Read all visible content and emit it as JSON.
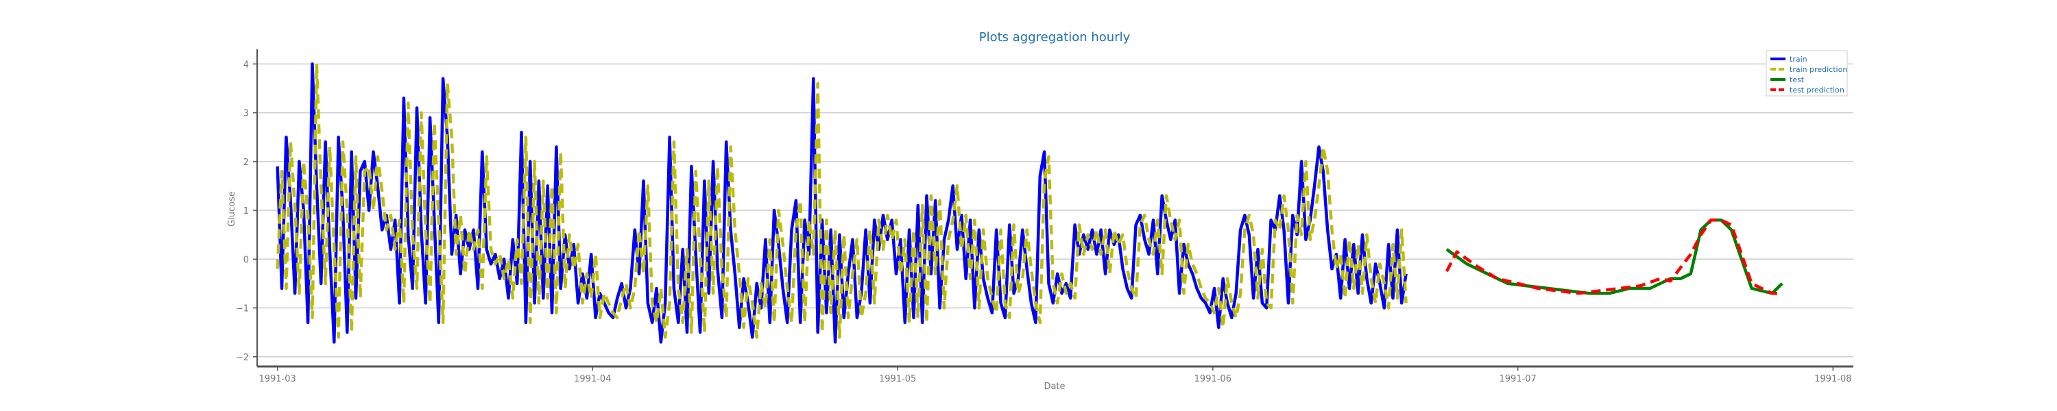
{
  "chart_data": {
    "type": "line",
    "title": "Plots aggregation hourly",
    "xlabel": "Date",
    "ylabel": "Glucose",
    "ylim": [
      -2.2,
      4.3
    ],
    "xlim": [
      "1991-02-27",
      "1991-08-03"
    ],
    "grid": "horizontal",
    "legend_position": "top-right",
    "x_ticks": [
      "1991-03-01",
      "1991-04-01",
      "1991-05-01",
      "1991-06-01",
      "1991-07-01",
      "1991-08-01"
    ],
    "x_tick_labels": [
      "1991-03",
      "1991-04",
      "1991-05",
      "1991-06",
      "1991-07",
      "1991-08"
    ],
    "y_ticks": [
      -2,
      -1,
      0,
      1,
      2,
      3,
      4
    ],
    "series": [
      {
        "name": "train",
        "color": "#0000ff",
        "style": "solid",
        "x_start": "1991-03-01",
        "x_end": "1991-06-20",
        "values": [
          1.9,
          -0.6,
          2.5,
          1.2,
          -0.7,
          2.0,
          1.0,
          -1.3,
          4.0,
          1.5,
          -0.5,
          2.4,
          0.2,
          -1.7,
          2.5,
          1.0,
          -1.5,
          2.2,
          -0.8,
          1.8,
          2.0,
          1.0,
          2.2,
          1.5,
          0.6,
          0.9,
          0.2,
          0.8,
          -0.9,
          3.3,
          0.5,
          -0.6,
          3.1,
          0.6,
          -0.9,
          2.9,
          0.8,
          -1.3,
          3.7,
          2.5,
          0.1,
          0.9,
          -0.3,
          0.6,
          0.2,
          0.6,
          -0.6,
          2.2,
          0.2,
          -0.1,
          0.1,
          -0.4,
          0.0,
          -0.8,
          0.4,
          -0.5,
          2.6,
          -1.3,
          2.0,
          -0.9,
          1.6,
          -0.8,
          1.5,
          -1.1,
          2.3,
          -0.6,
          0.5,
          -0.2,
          0.3,
          -0.9,
          -0.3,
          -0.8,
          0.1,
          -1.2,
          -0.7,
          -0.9,
          -1.1,
          -1.2,
          -0.8,
          -0.5,
          -1.0,
          -0.6,
          0.6,
          -0.3,
          1.6,
          -0.9,
          -1.3,
          -0.6,
          -1.7,
          -0.9,
          2.5,
          -0.6,
          -1.3,
          0.2,
          -1.5,
          1.9,
          0.1,
          -1.5,
          1.6,
          -0.7,
          2.0,
          -0.2,
          -1.2,
          2.4,
          0.6,
          -0.3,
          -1.4,
          -0.4,
          -0.9,
          -1.6,
          -0.5,
          -1.0,
          0.4,
          -1.3,
          1.0,
          0.3,
          -0.6,
          -1.3,
          0.6,
          1.2,
          -1.3,
          0.8,
          0.1,
          3.7,
          -1.5,
          0.8,
          -1.1,
          0.6,
          -1.7,
          0.5,
          -1.2,
          -0.3,
          0.4,
          -1.2,
          -0.7,
          0.6,
          -0.9,
          0.8,
          0.2,
          0.9,
          0.4,
          0.8,
          -0.3,
          0.4,
          -1.3,
          0.6,
          -1.2,
          1.1,
          -1.3,
          1.3,
          -0.3,
          1.2,
          -1.0,
          0.4,
          0.8,
          1.5,
          0.2,
          0.9,
          -0.4,
          0.8,
          -1.0,
          0.6,
          -0.4,
          -0.8,
          -1.1,
          0.6,
          -0.9,
          -1.2,
          0.7,
          -0.7,
          -0.4,
          0.6,
          -0.2,
          -0.9,
          -1.3,
          1.7,
          2.2,
          -0.5,
          -0.9,
          -0.3,
          -0.7,
          -0.5,
          -0.8,
          0.7,
          0.1,
          0.5,
          0.2,
          0.6,
          0.1,
          0.6,
          -0.3,
          0.6,
          0.3,
          0.5,
          -0.2,
          -0.6,
          -0.8,
          0.7,
          0.9,
          0.4,
          0.1,
          0.8,
          -0.3,
          1.3,
          0.8,
          0.4,
          0.8,
          -0.7,
          0.3,
          -0.1,
          -0.3,
          -0.6,
          -0.8,
          -0.9,
          -1.1,
          -0.6,
          -1.4,
          -0.4,
          -0.9,
          -1.2,
          -0.7,
          0.6,
          0.9,
          0.5,
          -0.8,
          0.2,
          -0.9,
          -1.0,
          0.8,
          0.6,
          1.3,
          0.6,
          -0.9,
          0.9,
          0.5,
          2.0,
          0.4,
          0.8,
          1.5,
          2.3,
          1.8,
          0.6,
          -0.2,
          0.1,
          -0.8,
          0.4,
          -0.6,
          0.3,
          -0.7,
          0.5,
          -0.4,
          -0.9,
          -0.1,
          -0.5,
          -1.0,
          0.3,
          -0.8,
          0.6,
          -0.9,
          -0.3
        ]
      },
      {
        "name": "train prediction",
        "color": "#bdbd00",
        "style": "dashed",
        "x_start": "1991-03-01",
        "x_end": "1991-06-20",
        "values": [
          -0.2,
          1.8,
          -0.6,
          2.4,
          1.1,
          -0.7,
          2.0,
          0.9,
          -1.2,
          4.0,
          1.5,
          -0.5,
          2.3,
          0.2,
          -1.6,
          2.4,
          1.0,
          -1.5,
          2.1,
          -0.8,
          1.8,
          1.9,
          1.0,
          2.1,
          1.4,
          0.6,
          0.9,
          0.2,
          0.8,
          -0.9,
          3.2,
          0.5,
          -0.6,
          3.0,
          0.6,
          -0.9,
          2.8,
          0.8,
          -1.3,
          3.6,
          2.5,
          0.1,
          0.9,
          -0.3,
          0.6,
          0.2,
          0.6,
          -0.6,
          2.1,
          0.2,
          -0.1,
          0.1,
          -0.4,
          0.0,
          -0.8,
          0.4,
          -0.5,
          2.5,
          -1.3,
          2.0,
          -0.9,
          1.6,
          -0.8,
          1.5,
          -1.1,
          2.2,
          -0.6,
          0.5,
          -0.2,
          0.3,
          -0.9,
          -0.3,
          -0.8,
          0.1,
          -1.2,
          -0.7,
          -0.9,
          -1.1,
          -1.2,
          -0.8,
          -0.5,
          -1.0,
          -0.6,
          0.6,
          -0.3,
          1.5,
          -0.9,
          -1.3,
          -0.6,
          -1.6,
          -0.9,
          2.4,
          -0.6,
          -1.3,
          0.2,
          -1.5,
          1.8,
          0.1,
          -1.5,
          1.6,
          -0.7,
          1.9,
          -0.2,
          -1.2,
          2.3,
          0.6,
          -0.3,
          -1.4,
          -0.4,
          -0.9,
          -1.6,
          -0.5,
          -1.0,
          0.4,
          -1.3,
          1.0,
          0.3,
          -0.6,
          -1.3,
          0.6,
          1.2,
          -1.3,
          0.8,
          0.1,
          3.6,
          -1.5,
          0.8,
          -1.1,
          0.6,
          -1.6,
          0.5,
          -1.2,
          -0.3,
          0.4,
          -1.2,
          -0.7,
          0.6,
          -0.9,
          0.8,
          0.2,
          0.9,
          0.4,
          0.8,
          -0.3,
          0.4,
          -1.3,
          0.6,
          -1.2,
          1.1,
          -1.3,
          1.3,
          -0.3,
          1.2,
          -1.0,
          0.4,
          0.8,
          1.5,
          0.2,
          0.9,
          -0.4,
          0.8,
          -1.0,
          0.6,
          -0.4,
          -0.8,
          -1.1,
          0.6,
          -0.9,
          -1.2,
          0.7,
          -0.7,
          -0.4,
          0.6,
          -0.2,
          -0.9,
          -1.3,
          1.6,
          2.1,
          -0.5,
          -0.9,
          -0.3,
          -0.7,
          -0.5,
          -0.8,
          0.7,
          0.1,
          0.5,
          0.2,
          0.6,
          0.1,
          0.6,
          -0.3,
          0.6,
          0.3,
          0.5,
          -0.2,
          -0.6,
          -0.8,
          0.7,
          0.9,
          0.4,
          0.1,
          0.8,
          -0.3,
          1.3,
          0.8,
          0.4,
          0.8,
          -0.7,
          0.3,
          -0.1,
          -0.3,
          -0.6,
          -0.8,
          -0.9,
          -1.1,
          -0.6,
          -1.4,
          -0.4,
          -0.9,
          -1.2,
          -0.7,
          0.6,
          0.9,
          0.5,
          -0.8,
          0.2,
          -0.9,
          -1.0,
          0.8,
          0.6,
          1.3,
          0.6,
          -0.9,
          0.9,
          0.5,
          2.0,
          0.4,
          0.8,
          1.5,
          2.3,
          1.8,
          0.6,
          -0.2,
          0.1,
          -0.8,
          0.4,
          -0.6,
          0.3,
          -0.7,
          0.5,
          -0.4,
          -0.9,
          -0.1,
          -0.5,
          -1.0,
          0.3,
          -0.8,
          0.6,
          -0.9
        ]
      },
      {
        "name": "test",
        "color": "#008000",
        "style": "solid",
        "x": [
          "1991-06-24",
          "1991-06-26",
          "1991-06-28",
          "1991-06-30",
          "1991-07-02",
          "1991-07-04",
          "1991-07-06",
          "1991-07-08",
          "1991-07-10",
          "1991-07-12",
          "1991-07-14",
          "1991-07-16",
          "1991-07-17",
          "1991-07-18",
          "1991-07-19",
          "1991-07-20",
          "1991-07-21",
          "1991-07-22",
          "1991-07-24",
          "1991-07-26",
          "1991-07-27"
        ],
        "values": [
          0.2,
          -0.1,
          -0.3,
          -0.5,
          -0.55,
          -0.6,
          -0.65,
          -0.7,
          -0.7,
          -0.6,
          -0.6,
          -0.4,
          -0.4,
          -0.3,
          0.6,
          0.8,
          0.8,
          0.6,
          -0.6,
          -0.7,
          -0.5
        ]
      },
      {
        "name": "test prediction",
        "color": "#ff0000",
        "style": "dashed",
        "x": [
          "1991-06-24",
          "1991-06-25",
          "1991-06-27",
          "1991-06-29",
          "1991-07-01",
          "1991-07-03",
          "1991-07-05",
          "1991-07-07",
          "1991-07-09",
          "1991-07-11",
          "1991-07-13",
          "1991-07-15",
          "1991-07-16",
          "1991-07-18",
          "1991-07-19",
          "1991-07-20",
          "1991-07-21",
          "1991-07-22",
          "1991-07-24",
          "1991-07-26",
          "1991-07-27"
        ],
        "values": [
          -0.25,
          0.15,
          -0.15,
          -0.4,
          -0.5,
          -0.6,
          -0.65,
          -0.7,
          -0.65,
          -0.6,
          -0.55,
          -0.4,
          -0.45,
          0.1,
          0.5,
          0.8,
          0.8,
          0.7,
          -0.5,
          -0.7,
          -0.7
        ]
      }
    ]
  }
}
